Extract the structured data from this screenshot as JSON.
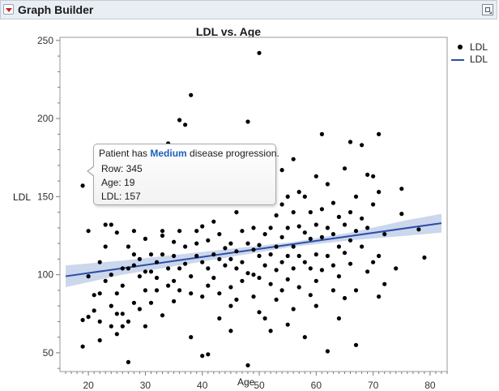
{
  "window": {
    "title": "Graph Builder",
    "collapse_icon": "red-disclosure-triangle-icon",
    "menu_icon": "popout-window-icon"
  },
  "chart_data": {
    "type": "scatter",
    "title": "LDL vs. Age",
    "xlabel": "Age",
    "ylabel": "LDL",
    "xlim": [
      15,
      83
    ],
    "ylim": [
      38,
      252
    ],
    "xticks": [
      20,
      30,
      40,
      50,
      60,
      70,
      80
    ],
    "yticks": [
      50,
      100,
      150,
      200,
      250
    ],
    "grid": false,
    "legend_position": "right",
    "colors": {
      "points": "#000000",
      "fit_line": "#2e4da6",
      "confidence_band": "#a9bde0"
    },
    "legend": [
      {
        "label": "LDL",
        "marker": "dot"
      },
      {
        "label": "LDL",
        "marker": "line"
      }
    ],
    "fit_line": {
      "x": [
        16,
        82
      ],
      "y": [
        99,
        133
      ]
    },
    "confidence_band": {
      "x": [
        16,
        26,
        36,
        46,
        56,
        66,
        76,
        82
      ],
      "lower": [
        92,
        100,
        106,
        112,
        118,
        122,
        125,
        127
      ],
      "upper": [
        106,
        109,
        113,
        117,
        121,
        127,
        135,
        139
      ]
    },
    "points": [
      [
        19,
        157
      ],
      [
        19,
        54
      ],
      [
        19,
        71
      ],
      [
        20,
        99
      ],
      [
        20,
        128
      ],
      [
        20,
        73
      ],
      [
        21,
        87
      ],
      [
        21,
        77
      ],
      [
        22,
        108
      ],
      [
        22,
        88
      ],
      [
        22,
        58
      ],
      [
        22,
        70
      ],
      [
        23,
        118
      ],
      [
        23,
        132
      ],
      [
        23,
        96
      ],
      [
        24,
        132
      ],
      [
        24,
        100
      ],
      [
        24,
        80
      ],
      [
        24,
        67
      ],
      [
        25,
        127
      ],
      [
        25,
        88
      ],
      [
        25,
        75
      ],
      [
        25,
        62
      ],
      [
        26,
        104
      ],
      [
        26,
        93
      ],
      [
        26,
        75
      ],
      [
        26,
        67
      ],
      [
        27,
        118
      ],
      [
        27,
        104
      ],
      [
        27,
        44
      ],
      [
        27,
        70
      ],
      [
        28,
        128
      ],
      [
        28,
        113
      ],
      [
        28,
        106
      ],
      [
        28,
        82
      ],
      [
        29,
        99
      ],
      [
        29,
        78
      ],
      [
        29,
        110
      ],
      [
        30,
        123
      ],
      [
        30,
        102
      ],
      [
        30,
        90
      ],
      [
        30,
        67
      ],
      [
        31,
        113
      ],
      [
        31,
        102
      ],
      [
        31,
        82
      ],
      [
        32,
        108
      ],
      [
        32,
        98
      ],
      [
        32,
        90
      ],
      [
        33,
        125
      ],
      [
        33,
        113
      ],
      [
        33,
        128
      ],
      [
        33,
        74
      ],
      [
        34,
        104
      ],
      [
        34,
        93
      ],
      [
        34,
        184
      ],
      [
        35,
        121
      ],
      [
        35,
        112
      ],
      [
        35,
        96
      ],
      [
        35,
        83
      ],
      [
        36,
        199
      ],
      [
        36,
        128
      ],
      [
        36,
        104
      ],
      [
        36,
        90
      ],
      [
        37,
        196
      ],
      [
        37,
        118
      ],
      [
        37,
        107
      ],
      [
        38,
        215
      ],
      [
        38,
        99
      ],
      [
        38,
        88
      ],
      [
        38,
        60
      ],
      [
        39,
        128
      ],
      [
        39,
        112
      ],
      [
        39,
        120
      ],
      [
        40,
        158
      ],
      [
        40,
        131
      ],
      [
        40,
        108
      ],
      [
        40,
        86
      ],
      [
        40,
        48
      ],
      [
        41,
        122
      ],
      [
        41,
        104
      ],
      [
        41,
        93
      ],
      [
        41,
        49
      ],
      [
        42,
        113
      ],
      [
        42,
        134
      ],
      [
        42,
        98
      ],
      [
        43,
        110
      ],
      [
        43,
        126
      ],
      [
        43,
        88
      ],
      [
        43,
        72
      ],
      [
        44,
        117
      ],
      [
        44,
        106
      ],
      [
        44,
        147
      ],
      [
        45,
        120
      ],
      [
        45,
        110
      ],
      [
        45,
        92
      ],
      [
        45,
        80
      ],
      [
        45,
        64
      ],
      [
        46,
        140
      ],
      [
        46,
        115
      ],
      [
        46,
        104
      ],
      [
        46,
        84
      ],
      [
        47,
        128
      ],
      [
        47,
        108
      ],
      [
        47,
        96
      ],
      [
        48,
        198
      ],
      [
        48,
        150
      ],
      [
        48,
        120
      ],
      [
        48,
        101
      ],
      [
        48,
        42
      ],
      [
        49,
        130
      ],
      [
        49,
        116
      ],
      [
        49,
        100
      ],
      [
        49,
        86
      ],
      [
        50,
        242
      ],
      [
        50,
        119
      ],
      [
        50,
        112
      ],
      [
        50,
        98
      ],
      [
        50,
        76
      ],
      [
        51,
        150
      ],
      [
        51,
        126
      ],
      [
        51,
        106
      ],
      [
        51,
        72
      ],
      [
        52,
        160
      ],
      [
        52,
        130
      ],
      [
        52,
        113
      ],
      [
        52,
        94
      ],
      [
        52,
        64
      ],
      [
        53,
        138
      ],
      [
        53,
        118
      ],
      [
        53,
        103
      ],
      [
        53,
        84
      ],
      [
        54,
        167
      ],
      [
        54,
        145
      ],
      [
        54,
        124
      ],
      [
        54,
        108
      ],
      [
        54,
        90
      ],
      [
        55,
        150
      ],
      [
        55,
        130
      ],
      [
        55,
        112
      ],
      [
        55,
        97
      ],
      [
        55,
        68
      ],
      [
        56,
        174
      ],
      [
        56,
        140
      ],
      [
        56,
        118
      ],
      [
        56,
        104
      ],
      [
        56,
        78
      ],
      [
        57,
        153
      ],
      [
        57,
        131
      ],
      [
        57,
        112
      ],
      [
        57,
        92
      ],
      [
        58,
        150
      ],
      [
        58,
        127
      ],
      [
        58,
        108
      ],
      [
        58,
        60
      ],
      [
        59,
        140
      ],
      [
        59,
        123
      ],
      [
        59,
        104
      ],
      [
        59,
        87
      ],
      [
        60,
        163
      ],
      [
        60,
        132
      ],
      [
        60,
        113
      ],
      [
        60,
        96
      ],
      [
        60,
        80
      ],
      [
        61,
        190
      ],
      [
        61,
        142
      ],
      [
        61,
        124
      ],
      [
        61,
        103
      ],
      [
        62,
        158
      ],
      [
        62,
        130
      ],
      [
        62,
        112
      ],
      [
        62,
        51
      ],
      [
        63,
        146
      ],
      [
        63,
        126
      ],
      [
        63,
        106
      ],
      [
        63,
        90
      ],
      [
        64,
        137
      ],
      [
        64,
        118
      ],
      [
        64,
        99
      ],
      [
        64,
        72
      ],
      [
        65,
        168
      ],
      [
        65,
        132
      ],
      [
        65,
        114
      ],
      [
        65,
        85
      ],
      [
        66,
        185
      ],
      [
        66,
        140
      ],
      [
        66,
        122
      ],
      [
        66,
        107
      ],
      [
        67,
        150
      ],
      [
        67,
        128
      ],
      [
        67,
        90
      ],
      [
        67,
        55
      ],
      [
        68,
        183
      ],
      [
        68,
        136
      ],
      [
        68,
        118
      ],
      [
        69,
        164
      ],
      [
        69,
        130
      ],
      [
        69,
        102
      ],
      [
        70,
        163
      ],
      [
        70,
        145
      ],
      [
        70,
        108
      ],
      [
        71,
        190
      ],
      [
        71,
        153
      ],
      [
        71,
        112
      ],
      [
        71,
        86
      ],
      [
        72,
        126
      ],
      [
        72,
        94
      ],
      [
        74,
        104
      ],
      [
        75,
        155
      ],
      [
        75,
        139
      ],
      [
        78,
        129
      ],
      [
        79,
        111
      ]
    ]
  }
}
